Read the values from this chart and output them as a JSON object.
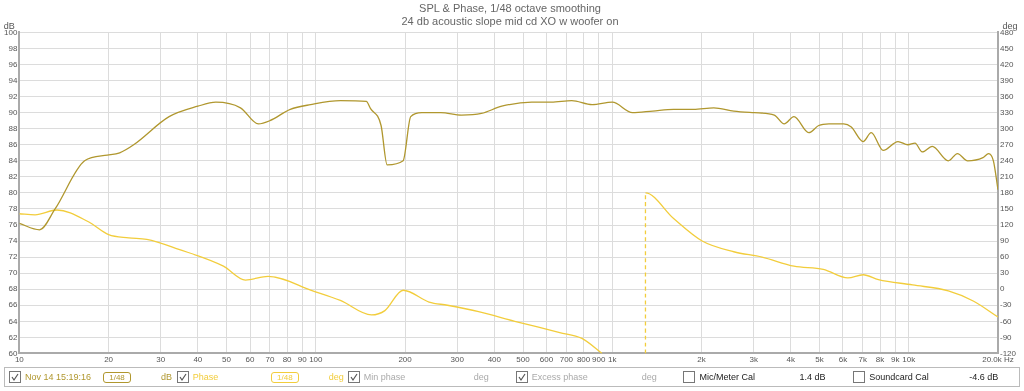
{
  "chart_data": {
    "type": "line",
    "title": "SPL & Phase, 1/48 octave smoothing",
    "subtitle": "24 db acoustic slope mid cd XO w woofer on",
    "ylabel": "dB",
    "y2label": "deg",
    "xlim": [
      10,
      20000
    ],
    "xticks": [
      10,
      20,
      30,
      40,
      50,
      60,
      70,
      80,
      90,
      100,
      200,
      300,
      400,
      500,
      600,
      700,
      800,
      900,
      {
        "value": 1000,
        "label": "1k"
      },
      {
        "value": 2000,
        "label": "2k"
      },
      {
        "value": 3000,
        "label": "3k"
      },
      {
        "value": 4000,
        "label": "4k"
      },
      {
        "value": 5000,
        "label": "5k"
      },
      {
        "value": 6000,
        "label": "6k"
      },
      {
        "value": 7000,
        "label": "7k"
      },
      {
        "value": 8000,
        "label": "8k"
      },
      {
        "value": 9000,
        "label": "9k"
      },
      {
        "value": 10000,
        "label": "10k"
      },
      {
        "value": 20000,
        "label": "20.0k Hz"
      }
    ],
    "log": "x",
    "ylim": [
      60,
      100
    ],
    "yticks": [
      60,
      62,
      64,
      66,
      68,
      70,
      72,
      74,
      76,
      78,
      80,
      82,
      84,
      86,
      88,
      90,
      92,
      94,
      96,
      98,
      100
    ],
    "y2lim": [
      -120,
      480
    ],
    "y2ticks": [
      -120,
      -90,
      -60,
      -30,
      0,
      30,
      60,
      90,
      120,
      150,
      180,
      210,
      240,
      270,
      300,
      330,
      360,
      390,
      420,
      450,
      480
    ],
    "grid": true,
    "legend": "bottom",
    "series": [
      {
        "name": "Nov 14 15:19:16",
        "color": "#b0972e",
        "x": [
          10,
          11.7,
          13.2,
          16.6,
          19.8,
          21.8,
          24.3,
          32,
          40,
          46,
          55.7,
          64,
          70,
          82,
          96,
          121,
          148,
          153,
          166,
          174,
          197,
          209,
          228,
          264,
          310,
          362,
          424,
          535,
          623,
          730,
          855,
          1000,
          1170,
          1370,
          1610,
          1880,
          2200,
          2570,
          3010,
          3520,
          3800,
          4100,
          4600,
          4970,
          5380,
          6030,
          6400,
          7020,
          7470,
          8200,
          9200,
          9930,
          10500,
          11100,
          12000,
          13600,
          14600,
          15800,
          17800,
          18600,
          19300,
          20000
        ],
        "values": [
          76.2,
          75.4,
          78,
          84,
          84.7,
          85,
          86,
          89.5,
          90.8,
          91.3,
          90.6,
          88.6,
          89,
          90.4,
          91,
          91.5,
          91.4,
          90.5,
          88.4,
          83.5,
          84,
          89.5,
          90,
          90,
          89.7,
          89.9,
          90.8,
          91.3,
          91.3,
          91.5,
          91,
          91.3,
          90,
          90.2,
          90.4,
          90.4,
          90.6,
          90.2,
          90,
          89.7,
          88.6,
          89.5,
          87.5,
          88.4,
          88.6,
          88.6,
          88.2,
          86.4,
          87.5,
          85.3,
          86.4,
          86,
          86.2,
          85.1,
          85.8,
          84,
          84.9,
          84,
          84.4,
          84.9,
          84,
          80.4
        ]
      },
      {
        "name": "Phase",
        "color": "#f2cd3c",
        "axis": "y2",
        "x": [
          10,
          11.3,
          13.4,
          17.1,
          20,
          23.4,
          26.9,
          34.3,
          48.8,
          57.9,
          69,
          97.6,
          121,
          154,
          171,
          197,
          241,
          278,
          354,
          469,
          665,
          790,
          923,
          1100,
          1294,
          1294,
          1610,
          2010,
          2570,
          3200,
          4100,
          5150,
          6230,
          7020,
          7900,
          10300,
          13600,
          16500,
          20000
        ],
        "values": [
          141,
          139,
          148,
          126,
          102,
          96,
          93,
          75,
          43,
          17,
          24,
          -3,
          -21,
          -48,
          -40,
          -2,
          -24,
          -30,
          -42,
          -60,
          -81,
          -92,
          -120,
          null,
          -120,
          180,
          132,
          90,
          70,
          60,
          43,
          37,
          21,
          27,
          18,
          8,
          -3,
          -22,
          -52
        ]
      }
    ],
    "annotations": [
      "1/48",
      "dB",
      "1/48",
      "deg",
      "Min phase",
      "deg",
      "Excess phase",
      "deg",
      "Mic/Meter Cal",
      "1.4 dB",
      "Soundcard Cal",
      "-4.6 dB"
    ]
  }
}
